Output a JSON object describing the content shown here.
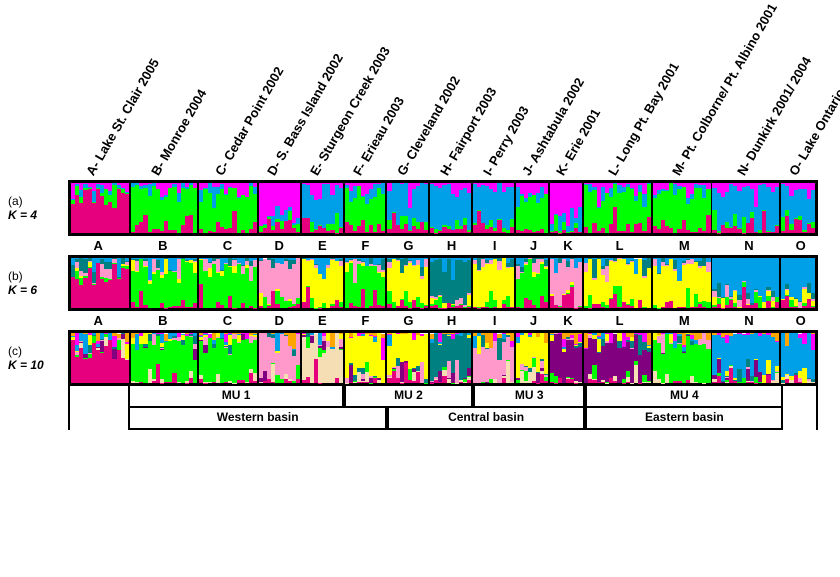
{
  "populations": [
    {
      "id": "A",
      "label": "A- Lake St. Clair 2005",
      "n": 14
    },
    {
      "id": "B",
      "label": "B- Monroe 2004",
      "n": 16
    },
    {
      "id": "C",
      "label": "C- Cedar Point 2002",
      "n": 14
    },
    {
      "id": "D",
      "label": "D- S. Bass Island 2002",
      "n": 10
    },
    {
      "id": "E",
      "label": "E- Sturgeon Creek 2003",
      "n": 10
    },
    {
      "id": "F",
      "label": "F- Erieau 2003",
      "n": 10
    },
    {
      "id": "G",
      "label": "G- Cleveland 2002",
      "n": 10
    },
    {
      "id": "H",
      "label": "H- Fairport 2003",
      "n": 10
    },
    {
      "id": "I",
      "label": "I- Perry 2003",
      "n": 10
    },
    {
      "id": "J",
      "label": "J- Ashtabula 2002",
      "n": 8
    },
    {
      "id": "K",
      "label": "K- Erie 2001",
      "n": 8
    },
    {
      "id": "L",
      "label": "L- Long Pt. Bay 2001",
      "n": 16
    },
    {
      "id": "M",
      "label": "M- Pt. Colborne/ Pt. Albino 2001",
      "n": 14
    },
    {
      "id": "N",
      "label": "N- Dunkirk 2001/ 2004",
      "n": 16
    },
    {
      "id": "O",
      "label": "O- Lake Ontario 2002",
      "n": 8
    }
  ],
  "panels": [
    {
      "tag": "(a)",
      "K": 4,
      "Klabel": "K = 4",
      "palette": [
        "#e6007e",
        "#00ff00",
        "#00a0e9",
        "#ff00ff"
      ]
    },
    {
      "tag": "(b)",
      "K": 6,
      "Klabel": "K = 6",
      "palette": [
        "#e6007e",
        "#00ff00",
        "#ffff00",
        "#ff99cc",
        "#008080",
        "#00a0e9"
      ]
    },
    {
      "tag": "(c)",
      "K": 10,
      "Klabel": "K = 10",
      "palette": [
        "#e6007e",
        "#f5deb3",
        "#00ff00",
        "#800080",
        "#ff99cc",
        "#008080",
        "#ffff00",
        "#00a0e9",
        "#ff00ff",
        "#ffa500"
      ]
    }
  ],
  "dominant": {
    "K4": {
      "A": 0,
      "B": 1,
      "C": 1,
      "D": 3,
      "E": 2,
      "F": 1,
      "G": 2,
      "H": 2,
      "I": 2,
      "J": 1,
      "K": 3,
      "L": 1,
      "M": 1,
      "N": 2,
      "O": 2
    },
    "K6": {
      "A": 0,
      "B": 1,
      "C": 1,
      "D": 3,
      "E": 2,
      "F": 1,
      "G": 2,
      "H": 4,
      "I": 2,
      "J": 1,
      "K": 3,
      "L": 2,
      "M": 2,
      "N": 5,
      "O": 5
    },
    "K10": {
      "A": 0,
      "B": 2,
      "C": 2,
      "D": 4,
      "E": 1,
      "F": 6,
      "G": 6,
      "H": 5,
      "I": 4,
      "J": 6,
      "K": 3,
      "L": 3,
      "M": 2,
      "N": 7,
      "O": 7
    }
  },
  "mu": [
    {
      "label": "",
      "span": [
        "A",
        "A"
      ]
    },
    {
      "label": "MU 1",
      "span": [
        "B",
        "E"
      ]
    },
    {
      "label": "MU 2",
      "span": [
        "F",
        "H"
      ]
    },
    {
      "label": "MU 3",
      "span": [
        "I",
        "K"
      ]
    },
    {
      "label": "MU 4",
      "span": [
        "L",
        "N"
      ]
    },
    {
      "label": "",
      "span": [
        "O",
        "O"
      ]
    }
  ],
  "basins": [
    {
      "label": "",
      "span": [
        "A",
        "A"
      ]
    },
    {
      "label": "Western basin",
      "span": [
        "B",
        "F"
      ]
    },
    {
      "label": "Central basin",
      "span": [
        "G",
        "K"
      ]
    },
    {
      "label": "Eastern basin",
      "span": [
        "L",
        "N"
      ]
    },
    {
      "label": "",
      "span": [
        "O",
        "O"
      ]
    }
  ],
  "colors": {
    "border": "#000000",
    "background": "#ffffff",
    "text": "#000000"
  },
  "font": {
    "family": "Arial",
    "label_size": 13,
    "axis_size": 12
  }
}
